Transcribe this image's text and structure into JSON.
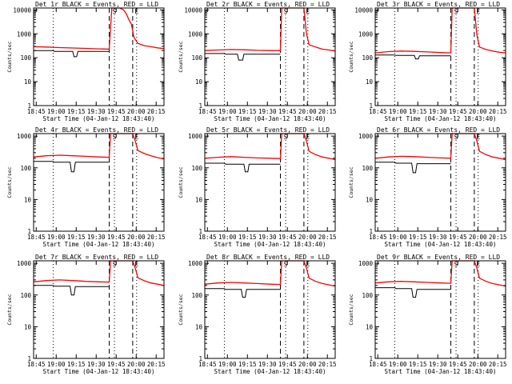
{
  "chart_data": [
    {
      "type": "line",
      "title": "Det 1r BLACK = Events, RED = LLD",
      "ylabel": "Counts/sec",
      "xlabel": "Start Time (04-Jan-12 18:43:40)",
      "xticks": [
        "18:45",
        "19:00",
        "19:15",
        "19:30",
        "19:45",
        "20:00",
        "20:15"
      ],
      "yticks": [
        "1",
        "10",
        "100",
        "1000",
        "10000"
      ],
      "ylim": [
        1,
        12000
      ],
      "xlim_min": [
        0,
        100
      ],
      "markers": [
        {
          "label": "S",
          "x": 62
        },
        {
          "label": "E",
          "x": 79
        }
      ],
      "dotted_x": [
        15,
        62,
        79
      ],
      "dashed_x": [
        58,
        76
      ],
      "series": [
        {
          "name": "Events",
          "color": "#000000",
          "x": [
            0,
            15,
            16,
            30,
            31,
            33,
            34,
            58
          ],
          "y": [
            200,
            200,
            185,
            185,
            110,
            110,
            185,
            185
          ]
        },
        {
          "name": "LLD",
          "color": "#ff0000",
          "x": [
            0,
            10,
            20,
            30,
            40,
            50,
            58,
            60,
            63,
            66,
            69,
            71,
            73,
            75,
            77,
            80,
            85,
            90,
            95,
            100
          ],
          "y": [
            290,
            280,
            265,
            255,
            245,
            235,
            230,
            12000,
            12000,
            12000,
            10000,
            7000,
            4000,
            2500,
            700,
            400,
            320,
            290,
            260,
            240
          ]
        }
      ]
    },
    {
      "type": "line",
      "title": "Det 2r BLACK = Events, RED = LLD",
      "ylabel": "Counts/sec",
      "xlabel": "Start Time (04-Jan-12 18:43:40)",
      "xticks": [
        "18:45",
        "19:00",
        "19:15",
        "19:30",
        "19:45",
        "20:00",
        "20:15"
      ],
      "yticks": [
        "1",
        "10",
        "100",
        "1000",
        "10000"
      ],
      "ylim": [
        1,
        12000
      ],
      "xlim_min": [
        0,
        100
      ],
      "markers": [
        {
          "label": "S",
          "x": 62
        },
        {
          "label": "E",
          "x": 79
        }
      ],
      "dotted_x": [
        15,
        62,
        79
      ],
      "dashed_x": [
        58,
        76
      ],
      "series": [
        {
          "name": "Events",
          "color": "#000000",
          "x": [
            0,
            15,
            16,
            25,
            26,
            29,
            30,
            58
          ],
          "y": [
            150,
            150,
            140,
            140,
            80,
            80,
            140,
            140
          ]
        },
        {
          "name": "LLD",
          "color": "#ff0000",
          "x": [
            0,
            10,
            20,
            30,
            40,
            50,
            58,
            59,
            62,
            66,
            70,
            74,
            76,
            78,
            80,
            85,
            90,
            95,
            100
          ],
          "y": [
            200,
            210,
            220,
            215,
            205,
            200,
            200,
            12000,
            12000,
            12000,
            12000,
            12000,
            12000,
            1000,
            350,
            280,
            230,
            210,
            190
          ]
        }
      ]
    },
    {
      "type": "line",
      "title": "Det 3r BLACK = Events, RED = LLD",
      "ylabel": "Counts/sec",
      "xlabel": "Start Time (04-Jan-12 18:43:40)",
      "xticks": [
        "18:45",
        "19:00",
        "19:15",
        "19:30",
        "19:45",
        "20:00",
        "20:15"
      ],
      "yticks": [
        "1",
        "10",
        "100",
        "1000",
        "10000"
      ],
      "ylim": [
        1,
        12000
      ],
      "xlim_min": [
        0,
        100
      ],
      "markers": [
        {
          "label": "S",
          "x": 62
        },
        {
          "label": "E",
          "x": 79
        }
      ],
      "dotted_x": [
        15,
        62,
        79
      ],
      "dashed_x": [
        58,
        76
      ],
      "series": [
        {
          "name": "Events",
          "color": "#000000",
          "x": [
            0,
            15,
            16,
            30,
            31,
            33,
            34,
            58
          ],
          "y": [
            130,
            130,
            125,
            125,
            90,
            90,
            120,
            120
          ]
        },
        {
          "name": "LLD",
          "color": "#ff0000",
          "x": [
            0,
            10,
            20,
            30,
            40,
            50,
            58,
            59,
            62,
            66,
            70,
            74,
            76,
            78,
            80,
            85,
            90,
            95,
            100
          ],
          "y": [
            160,
            180,
            190,
            185,
            175,
            165,
            160,
            12000,
            12000,
            12000,
            12000,
            12000,
            12000,
            900,
            280,
            220,
            190,
            170,
            160
          ]
        }
      ]
    },
    {
      "type": "line",
      "title": "Det 4r BLACK = Events, RED = LLD",
      "ylabel": "Counts/sec",
      "xlabel": "Start Time (04-Jan-12 18:43:40)",
      "xticks": [
        "18:45",
        "19:00",
        "19:15",
        "19:30",
        "19:45",
        "20:00",
        "20:15"
      ],
      "yticks": [
        "1",
        "10",
        "100",
        "1000"
      ],
      "ylim": [
        1,
        1200
      ],
      "xlim_min": [
        0,
        100
      ],
      "markers": [
        {
          "label": "S",
          "x": 62
        },
        {
          "label": "E",
          "x": 79
        }
      ],
      "dotted_x": [
        15,
        62,
        79
      ],
      "dashed_x": [
        58,
        76
      ],
      "series": [
        {
          "name": "Events",
          "color": "#000000",
          "x": [
            0,
            15,
            16,
            28,
            29,
            31,
            32,
            58
          ],
          "y": [
            160,
            160,
            150,
            150,
            75,
            75,
            150,
            150
          ]
        },
        {
          "name": "LLD",
          "color": "#ff0000",
          "x": [
            0,
            10,
            20,
            30,
            40,
            50,
            58,
            59,
            62,
            66,
            70,
            74,
            76,
            78,
            80,
            85,
            90,
            95,
            100
          ],
          "y": [
            220,
            240,
            250,
            240,
            230,
            220,
            215,
            1200,
            1200,
            1200,
            1200,
            1200,
            1200,
            700,
            350,
            280,
            240,
            210,
            190
          ]
        }
      ]
    },
    {
      "type": "line",
      "title": "Det 5r BLACK = Events, RED = LLD",
      "ylabel": "Counts/sec",
      "xlabel": "Start Time (04-Jan-12 18:43:40)",
      "xticks": [
        "18:45",
        "19:00",
        "19:15",
        "19:30",
        "19:45",
        "20:00",
        "20:15"
      ],
      "yticks": [
        "1",
        "10",
        "100",
        "1000"
      ],
      "ylim": [
        1,
        1200
      ],
      "xlim_min": [
        0,
        100
      ],
      "markers": [
        {
          "label": "S",
          "x": 62
        },
        {
          "label": "E",
          "x": 79
        }
      ],
      "dotted_x": [
        15,
        62,
        79
      ],
      "dashed_x": [
        58,
        76
      ],
      "series": [
        {
          "name": "Events",
          "color": "#000000",
          "x": [
            0,
            15,
            16,
            30,
            31,
            33,
            34,
            58
          ],
          "y": [
            140,
            140,
            130,
            130,
            75,
            75,
            130,
            130
          ]
        },
        {
          "name": "LLD",
          "color": "#ff0000",
          "x": [
            0,
            10,
            20,
            30,
            40,
            50,
            58,
            59,
            62,
            66,
            70,
            74,
            76,
            78,
            80,
            85,
            90,
            95,
            100
          ],
          "y": [
            200,
            215,
            225,
            215,
            205,
            200,
            195,
            1200,
            1200,
            1200,
            1200,
            1200,
            1200,
            700,
            330,
            260,
            220,
            200,
            180
          ]
        }
      ]
    },
    {
      "type": "line",
      "title": "Det 6r BLACK = Events, RED = LLD",
      "ylabel": "Counts/sec",
      "xlabel": "Start Time (04-Jan-12 18:43:40)",
      "xticks": [
        "18:45",
        "19:00",
        "19:15",
        "19:30",
        "19:45",
        "20:00",
        "20:15"
      ],
      "yticks": [
        "1",
        "10",
        "100",
        "1000"
      ],
      "ylim": [
        1,
        1200
      ],
      "xlim_min": [
        0,
        100
      ],
      "markers": [
        {
          "label": "S",
          "x": 62
        },
        {
          "label": "E",
          "x": 79
        }
      ],
      "dotted_x": [
        15,
        62,
        79
      ],
      "dashed_x": [
        58,
        76
      ],
      "series": [
        {
          "name": "Events",
          "color": "#000000",
          "x": [
            0,
            15,
            16,
            28,
            29,
            31,
            32,
            58
          ],
          "y": [
            150,
            150,
            140,
            140,
            70,
            70,
            135,
            135
          ]
        },
        {
          "name": "LLD",
          "color": "#ff0000",
          "x": [
            0,
            10,
            20,
            30,
            40,
            50,
            58,
            59,
            62,
            66,
            70,
            74,
            76,
            78,
            80,
            85,
            90,
            95,
            100
          ],
          "y": [
            200,
            220,
            230,
            225,
            215,
            205,
            200,
            1200,
            1200,
            1200,
            1200,
            1200,
            1200,
            700,
            330,
            260,
            220,
            200,
            180
          ]
        }
      ]
    },
    {
      "type": "line",
      "title": "Det 7r BLACK = Events, RED = LLD",
      "ylabel": "Counts/sec",
      "xlabel": "Start Time (04-Jan-12 18:43:40)",
      "xticks": [
        "18:45",
        "19:00",
        "19:15",
        "19:30",
        "19:45",
        "20:00",
        "20:15"
      ],
      "yticks": [
        "1",
        "10",
        "100",
        "1000"
      ],
      "ylim": [
        1,
        1200
      ],
      "xlim_min": [
        0,
        100
      ],
      "markers": [
        {
          "label": "S",
          "x": 62
        },
        {
          "label": "E",
          "x": 79
        }
      ],
      "dotted_x": [
        15,
        62,
        79
      ],
      "dashed_x": [
        58,
        76
      ],
      "series": [
        {
          "name": "Events",
          "color": "#000000",
          "x": [
            0,
            15,
            16,
            28,
            29,
            31,
            32,
            58
          ],
          "y": [
            200,
            200,
            190,
            190,
            100,
            100,
            185,
            185
          ]
        },
        {
          "name": "LLD",
          "color": "#ff0000",
          "x": [
            0,
            10,
            20,
            30,
            40,
            50,
            58,
            59,
            62,
            66,
            70,
            74,
            76,
            78,
            80,
            85,
            90,
            95,
            100
          ],
          "y": [
            260,
            285,
            300,
            285,
            270,
            260,
            255,
            1200,
            1200,
            1200,
            1200,
            1200,
            1200,
            700,
            350,
            280,
            240,
            220,
            200
          ]
        }
      ]
    },
    {
      "type": "line",
      "title": "Det 8r BLACK = Events, RED = LLD",
      "ylabel": "Counts/sec",
      "xlabel": "Start Time (04-Jan-12 18:43:40)",
      "xticks": [
        "18:45",
        "19:00",
        "19:15",
        "19:30",
        "19:45",
        "20:00",
        "20:15"
      ],
      "yticks": [
        "1",
        "10",
        "100",
        "1000"
      ],
      "ylim": [
        1,
        1200
      ],
      "xlim_min": [
        0,
        100
      ],
      "markers": [
        {
          "label": "S",
          "x": 62
        },
        {
          "label": "E",
          "x": 79
        }
      ],
      "dotted_x": [
        15,
        62,
        79
      ],
      "dashed_x": [
        58,
        76
      ],
      "series": [
        {
          "name": "Events",
          "color": "#000000",
          "x": [
            0,
            15,
            16,
            28,
            29,
            31,
            32,
            58
          ],
          "y": [
            160,
            160,
            150,
            150,
            85,
            85,
            150,
            150
          ]
        },
        {
          "name": "LLD",
          "color": "#ff0000",
          "x": [
            0,
            10,
            20,
            30,
            40,
            50,
            58,
            59,
            62,
            66,
            70,
            74,
            76,
            78,
            80,
            85,
            90,
            95,
            100
          ],
          "y": [
            220,
            240,
            250,
            240,
            230,
            220,
            215,
            1200,
            1200,
            1200,
            1200,
            1200,
            1200,
            700,
            340,
            270,
            230,
            210,
            190
          ]
        }
      ]
    },
    {
      "type": "line",
      "title": "Det 9r BLACK = Events, RED = LLD",
      "ylabel": "Counts/sec",
      "xlabel": "Start Time (04-Jan-12 18:43:40)",
      "xticks": [
        "18:45",
        "19:00",
        "19:15",
        "19:30",
        "19:45",
        "20:00",
        "20:15"
      ],
      "yticks": [
        "1",
        "10",
        "100",
        "1000"
      ],
      "ylim": [
        1,
        1200
      ],
      "xlim_min": [
        0,
        100
      ],
      "markers": [
        {
          "label": "S",
          "x": 62
        },
        {
          "label": "E",
          "x": 79
        }
      ],
      "dotted_x": [
        15,
        62,
        79
      ],
      "dashed_x": [
        58,
        76
      ],
      "series": [
        {
          "name": "Events",
          "color": "#000000",
          "x": [
            0,
            15,
            16,
            28,
            29,
            31,
            32,
            58
          ],
          "y": [
            170,
            170,
            160,
            160,
            85,
            85,
            150,
            150
          ]
        },
        {
          "name": "LLD",
          "color": "#ff0000",
          "x": [
            0,
            10,
            20,
            30,
            40,
            50,
            58,
            59,
            62,
            66,
            70,
            74,
            76,
            78,
            80,
            85,
            90,
            95,
            100
          ],
          "y": [
            240,
            260,
            270,
            260,
            250,
            240,
            235,
            1200,
            1200,
            1200,
            1200,
            1200,
            1200,
            700,
            340,
            270,
            230,
            210,
            190
          ]
        }
      ]
    }
  ]
}
